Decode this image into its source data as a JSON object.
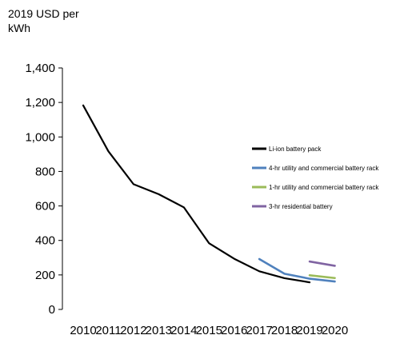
{
  "chart_data": {
    "type": "line",
    "title": "",
    "ylabel_line1": "2019 USD per",
    "ylabel_line2": "kWh",
    "xlabel": "",
    "ylim": [
      0,
      1400
    ],
    "yticks": [
      "0",
      "200",
      "400",
      "600",
      "800",
      "1,000",
      "1,200",
      "1,400"
    ],
    "ytick_values": [
      0,
      200,
      400,
      600,
      800,
      1000,
      1200,
      1400
    ],
    "xticks": [
      "2010",
      "2011",
      "2012",
      "2013",
      "2014",
      "2015",
      "2016",
      "2017",
      "2018",
      "2019",
      "2020"
    ],
    "xtick_values": [
      2010,
      2011,
      2012,
      2013,
      2014,
      2015,
      2016,
      2017,
      2018,
      2019,
      2020
    ],
    "grid": false,
    "legend_position": "right",
    "series": [
      {
        "name": "Li-ion battery pack",
        "color": "#000000",
        "points": [
          [
            2010,
            1183
          ],
          [
            2011,
            917
          ],
          [
            2012,
            726
          ],
          [
            2013,
            668
          ],
          [
            2014,
            592
          ],
          [
            2015,
            384
          ],
          [
            2016,
            294
          ],
          [
            2017,
            221
          ],
          [
            2018,
            181
          ],
          [
            2019,
            157
          ]
        ]
      },
      {
        "name": "4-hr utility and commercial battery rack",
        "color": "#4f81bd",
        "points": [
          [
            2017,
            292
          ],
          [
            2018,
            207
          ],
          [
            2019,
            178
          ],
          [
            2020,
            162
          ]
        ]
      },
      {
        "name": "1-hr utility and commercial battery rack",
        "color": "#9bbb59",
        "points": [
          [
            2019,
            198
          ],
          [
            2020,
            182
          ]
        ]
      },
      {
        "name": "3-hr residential battery",
        "color": "#8064a2",
        "points": [
          [
            2019,
            278
          ],
          [
            2020,
            253
          ]
        ]
      }
    ]
  }
}
